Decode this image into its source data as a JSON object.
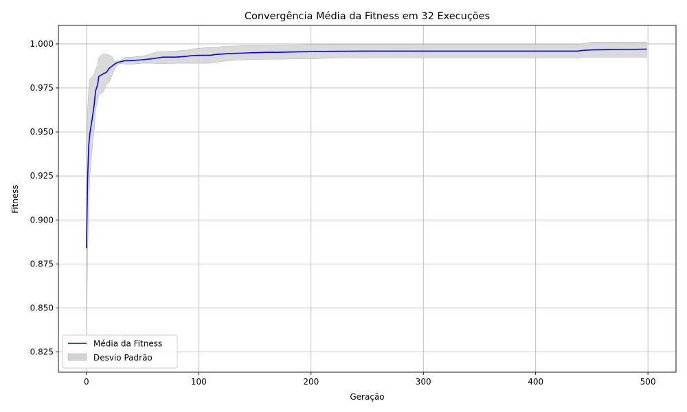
{
  "chart_data": {
    "type": "line",
    "title": "Convergência Média da Fitness em 32 Execuções",
    "xlabel": "Geração",
    "ylabel": "Fitness",
    "xlim": [
      -25,
      525
    ],
    "ylim": [
      0.8135,
      1.0105
    ],
    "xticks": [
      0,
      100,
      200,
      300,
      400,
      500
    ],
    "yticks": [
      0.825,
      0.85,
      0.875,
      0.9,
      0.925,
      0.95,
      0.975,
      1.0
    ],
    "grid": true,
    "legend_position": "lower-left",
    "series": [
      {
        "name": "Média da Fitness",
        "color": "#0000ff",
        "x": [
          0,
          1,
          2,
          3,
          5,
          7,
          8,
          10,
          11,
          15,
          18,
          20,
          23,
          25,
          28,
          31,
          35,
          40,
          50,
          58,
          63,
          68,
          80,
          90,
          92,
          100,
          110,
          115,
          120,
          126,
          140,
          150,
          160,
          170,
          190,
          200,
          220,
          250,
          300,
          350,
          400,
          438,
          440,
          450,
          470,
          499
        ],
        "y": [
          0.884,
          0.923,
          0.942,
          0.949,
          0.957,
          0.966,
          0.973,
          0.977,
          0.9815,
          0.983,
          0.984,
          0.986,
          0.9875,
          0.9885,
          0.9895,
          0.99,
          0.9905,
          0.9905,
          0.991,
          0.9915,
          0.992,
          0.9925,
          0.9925,
          0.993,
          0.9932,
          0.9935,
          0.9935,
          0.994,
          0.9942,
          0.9945,
          0.9948,
          0.995,
          0.9952,
          0.9952,
          0.9955,
          0.9956,
          0.9958,
          0.9959,
          0.9959,
          0.9959,
          0.9959,
          0.9959,
          0.9962,
          0.9966,
          0.9968,
          0.997
        ]
      }
    ],
    "band": {
      "name": "Desvio Padrão",
      "color": "#d3d3d3",
      "x": [
        0,
        1,
        2,
        3,
        5,
        7,
        8,
        10,
        11,
        15,
        18,
        20,
        23,
        25,
        28,
        31,
        35,
        40,
        50,
        58,
        63,
        68,
        80,
        90,
        92,
        100,
        110,
        115,
        120,
        126,
        140,
        150,
        160,
        170,
        190,
        200,
        220,
        250,
        300,
        350,
        400,
        438,
        440,
        450,
        470,
        499
      ],
      "upper": [
        0.934,
        0.963,
        0.974,
        0.98,
        0.981,
        0.983,
        0.985,
        0.988,
        0.992,
        0.9945,
        0.994,
        0.9935,
        0.9925,
        0.99,
        0.9905,
        0.991,
        0.9925,
        0.9925,
        0.993,
        0.9945,
        0.9955,
        0.9955,
        0.996,
        0.9965,
        0.997,
        0.9975,
        0.998,
        0.998,
        0.9985,
        0.9987,
        0.999,
        0.999,
        0.999,
        0.9992,
        0.9995,
        0.9996,
        0.9997,
        0.9997,
        0.9998,
        0.9998,
        0.9998,
        0.9998,
        1.0,
        1.001,
        1.001,
        1.001
      ],
      "lower": [
        0.826,
        0.882,
        0.907,
        0.925,
        0.94,
        0.952,
        0.962,
        0.968,
        0.971,
        0.973,
        0.977,
        0.978,
        0.9825,
        0.986,
        0.9885,
        0.989,
        0.9885,
        0.9885,
        0.989,
        0.989,
        0.9888,
        0.9888,
        0.989,
        0.989,
        0.989,
        0.989,
        0.989,
        0.9895,
        0.99,
        0.9905,
        0.991,
        0.9912,
        0.9913,
        0.9913,
        0.9915,
        0.9915,
        0.992,
        0.992,
        0.992,
        0.992,
        0.992,
        0.992,
        0.9925,
        0.9925,
        0.9925,
        0.9925
      ]
    }
  }
}
